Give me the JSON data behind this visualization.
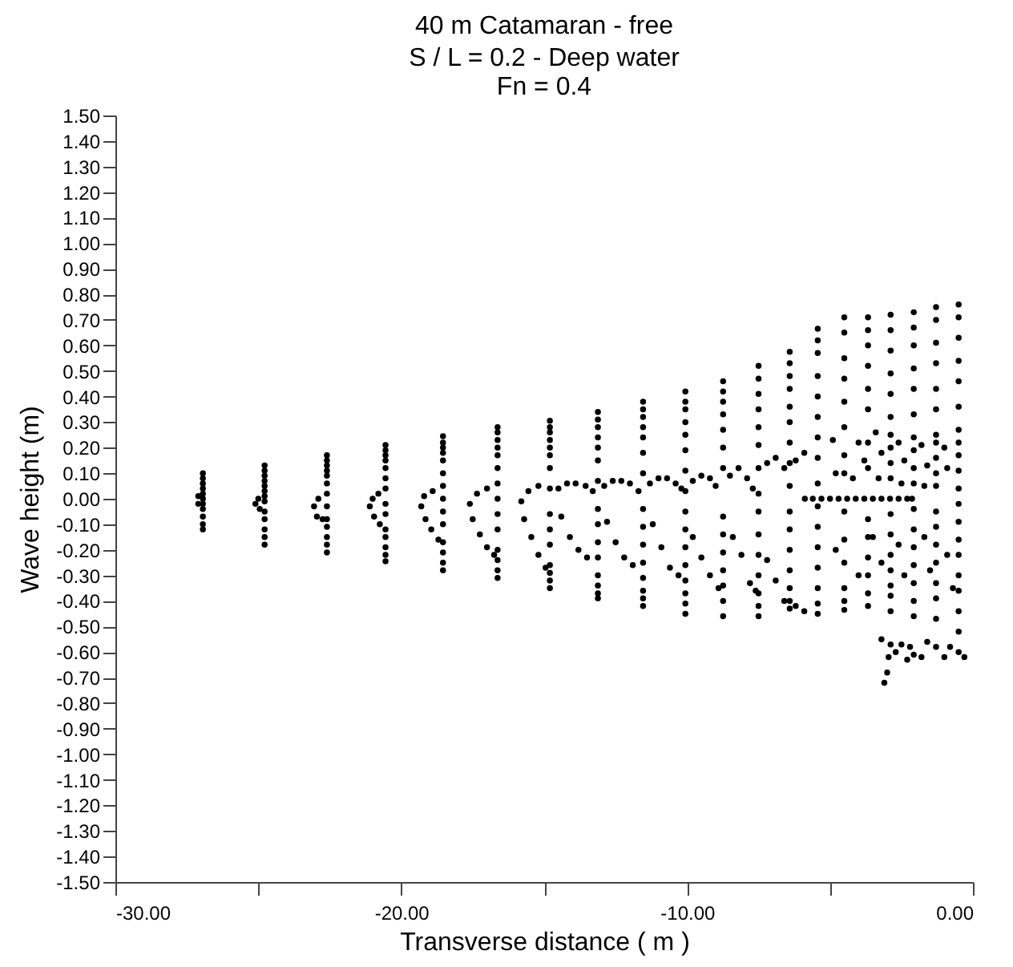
{
  "chart_data": {
    "type": "scatter",
    "title": "40 m Catamaran - free",
    "subtitle": "S / L = 0.2 - Deep water\nFn = 0.4",
    "xlabel": "Transverse distance ( m )",
    "ylabel": "Wave height  (m)",
    "xlim": [
      -30,
      0
    ],
    "ylim": [
      -1.5,
      1.5
    ],
    "xticks": [
      {
        "value": -30,
        "label": "-30.00"
      },
      {
        "value": -25,
        "label": null
      },
      {
        "value": -20,
        "label": "-20.00"
      },
      {
        "value": -15,
        "label": null
      },
      {
        "value": -10,
        "label": "-10.00"
      },
      {
        "value": -5,
        "label": null
      },
      {
        "value": 0,
        "label": "0.00"
      }
    ],
    "yticks": [
      {
        "value": 1.5,
        "label": "1.50"
      },
      {
        "value": 1.4,
        "label": "1.40"
      },
      {
        "value": 1.3,
        "label": "1.30"
      },
      {
        "value": 1.2,
        "label": "1.20"
      },
      {
        "value": 1.1,
        "label": "1.10"
      },
      {
        "value": 1.0,
        "label": "1.00"
      },
      {
        "value": 0.9,
        "label": "0.90"
      },
      {
        "value": 0.8,
        "label": "0.80"
      },
      {
        "value": 0.7,
        "label": "0.70"
      },
      {
        "value": 0.6,
        "label": "0.60"
      },
      {
        "value": 0.5,
        "label": "0.50"
      },
      {
        "value": 0.4,
        "label": "0.40"
      },
      {
        "value": 0.3,
        "label": "0.30"
      },
      {
        "value": 0.2,
        "label": "0.20"
      },
      {
        "value": 0.1,
        "label": "0.10"
      },
      {
        "value": 0,
        "label": "0.00"
      },
      {
        "value": -0.1,
        "label": "-0.10"
      },
      {
        "value": -0.2,
        "label": "-0.20"
      },
      {
        "value": -0.3,
        "label": "-0.30"
      },
      {
        "value": -0.4,
        "label": "-0.40"
      },
      {
        "value": -0.5,
        "label": "-0.50"
      },
      {
        "value": -0.6,
        "label": "-0.60"
      },
      {
        "value": -0.7,
        "label": "-0.70"
      },
      {
        "value": -0.8,
        "label": "-0.80"
      },
      {
        "value": -0.9,
        "label": "-0.90"
      },
      {
        "value": -1.0,
        "label": "-1.00"
      },
      {
        "value": -1.1,
        "label": "-1.10"
      },
      {
        "value": -1.2,
        "label": "-1.20"
      },
      {
        "value": -1.3,
        "label": "-1.30"
      },
      {
        "value": -1.4,
        "label": "-1.40"
      },
      {
        "value": -1.5,
        "label": "-1.50"
      }
    ],
    "grid": false,
    "legend": false,
    "marker": "circle",
    "series": [
      {
        "color": "#000000",
        "x": [
          -26.94,
          -26.94,
          -26.94,
          -26.94,
          -26.94,
          -26.94,
          -26.94,
          -26.94,
          -26.94,
          -26.94,
          -26.94,
          -27.1,
          -27.1
        ],
        "values": [
          0.1,
          0.08,
          0.06,
          0.04,
          0.02,
          0.0,
          -0.02,
          -0.04,
          -0.07,
          -0.1,
          -0.12,
          0.01,
          -0.02
        ]
      },
      {
        "color": "#000000",
        "x": [
          -24.78,
          -24.78,
          -24.78,
          -24.78,
          -24.78,
          -24.78,
          -24.78,
          -24.78,
          -24.78,
          -24.78,
          -24.78,
          -24.78,
          -24.78,
          -25.0,
          -25.1,
          -24.95
        ],
        "values": [
          0.13,
          0.11,
          0.09,
          0.07,
          0.05,
          0.03,
          0.01,
          -0.01,
          -0.05,
          -0.08,
          -0.12,
          -0.15,
          -0.18,
          0.0,
          -0.02,
          -0.04
        ]
      },
      {
        "color": "#000000",
        "x": [
          -22.6,
          -22.6,
          -22.6,
          -22.6,
          -22.6,
          -22.6,
          -22.6,
          -22.6,
          -22.6,
          -22.6,
          -22.6,
          -22.6,
          -22.6,
          -22.9,
          -23.05,
          -22.95,
          -22.75
        ],
        "values": [
          0.17,
          0.15,
          0.13,
          0.11,
          0.09,
          0.06,
          0.02,
          -0.03,
          -0.08,
          -0.11,
          -0.15,
          -0.18,
          -0.21,
          0.0,
          -0.03,
          -0.07,
          -0.08
        ]
      },
      {
        "color": "#000000",
        "x": [
          -20.55,
          -20.55,
          -20.55,
          -20.55,
          -20.55,
          -20.55,
          -20.55,
          -20.55,
          -20.55,
          -20.55,
          -20.55,
          -20.55,
          -20.55,
          -20.55,
          -20.8,
          -21.0,
          -21.1,
          -20.95,
          -20.75
        ],
        "values": [
          0.21,
          0.19,
          0.17,
          0.15,
          0.12,
          0.08,
          0.04,
          -0.02,
          -0.06,
          -0.12,
          -0.15,
          -0.19,
          -0.22,
          -0.245,
          0.02,
          0.0,
          -0.03,
          -0.07,
          -0.1
        ]
      },
      {
        "color": "#000000",
        "x": [
          -18.54,
          -18.54,
          -18.54,
          -18.54,
          -18.54,
          -18.54,
          -18.54,
          -18.54,
          -18.54,
          -18.54,
          -18.54,
          -18.54,
          -18.54,
          -18.54,
          -18.9,
          -19.2,
          -19.3,
          -19.15,
          -18.95,
          -18.7
        ],
        "values": [
          0.245,
          0.22,
          0.2,
          0.18,
          0.15,
          0.1,
          0.05,
          0.0,
          -0.05,
          -0.1,
          -0.17,
          -0.21,
          -0.25,
          -0.28,
          0.03,
          0.01,
          -0.03,
          -0.08,
          -0.12,
          -0.16
        ]
      },
      {
        "color": "#000000",
        "x": [
          -16.63,
          -16.63,
          -16.63,
          -16.63,
          -16.63,
          -16.63,
          -16.63,
          -16.63,
          -16.63,
          -16.63,
          -16.63,
          -16.63,
          -16.63,
          -16.63,
          -17.0,
          -17.35,
          -17.6,
          -17.5,
          -17.25,
          -17.0,
          -16.75
        ],
        "values": [
          0.28,
          0.26,
          0.23,
          0.2,
          0.17,
          0.12,
          0.06,
          0.0,
          -0.06,
          -0.12,
          -0.2,
          -0.24,
          -0.28,
          -0.31,
          0.04,
          0.02,
          -0.02,
          -0.08,
          -0.14,
          -0.19,
          -0.22
        ]
      },
      {
        "color": "#000000",
        "x": [
          -14.8,
          -14.8,
          -14.8,
          -14.8,
          -14.8,
          -14.8,
          -14.8,
          -14.8,
          -14.8,
          -14.8,
          -14.8,
          -14.8,
          -14.8,
          -14.8,
          -14.8,
          -15.2,
          -15.55,
          -15.8,
          -15.7,
          -15.45,
          -15.2,
          -14.95
        ],
        "values": [
          0.305,
          0.28,
          0.26,
          0.23,
          0.2,
          0.17,
          0.12,
          0.04,
          -0.06,
          -0.12,
          -0.18,
          -0.26,
          -0.29,
          -0.32,
          -0.35,
          0.05,
          0.03,
          -0.01,
          -0.08,
          -0.15,
          -0.22,
          -0.27
        ]
      },
      {
        "color": "#000000",
        "x": [
          -13.12,
          -13.12,
          -13.12,
          -13.12,
          -13.12,
          -13.12,
          -13.12,
          -13.12,
          -13.12,
          -13.12,
          -13.12,
          -13.12,
          -13.12,
          -13.12,
          -13.12,
          -14.5,
          -14.2,
          -13.9,
          -13.55,
          -13.3,
          -14.4,
          -14.1,
          -13.8,
          -13.5
        ],
        "values": [
          0.34,
          0.31,
          0.28,
          0.24,
          0.2,
          0.15,
          0.07,
          -0.04,
          -0.1,
          -0.17,
          -0.23,
          -0.3,
          -0.34,
          -0.37,
          -0.39,
          0.04,
          0.06,
          0.06,
          0.05,
          0.03,
          -0.07,
          -0.15,
          -0.2,
          -0.23
        ]
      },
      {
        "color": "#000000",
        "x": [
          -11.54,
          -11.54,
          -11.54,
          -11.54,
          -11.54,
          -11.54,
          -11.54,
          -11.54,
          -11.54,
          -11.54,
          -11.54,
          -11.54,
          -11.54,
          -11.54,
          -11.54,
          -12.9,
          -12.6,
          -12.3,
          -12.0,
          -11.7,
          -12.8,
          -12.5,
          -12.2,
          -11.9
        ],
        "values": [
          0.38,
          0.35,
          0.32,
          0.28,
          0.24,
          0.18,
          0.1,
          -0.04,
          -0.11,
          -0.18,
          -0.25,
          -0.31,
          -0.36,
          -0.39,
          -0.42,
          0.05,
          0.07,
          0.07,
          0.06,
          0.03,
          -0.09,
          -0.17,
          -0.23,
          -0.26
        ]
      },
      {
        "color": "#000000",
        "x": [
          -10.06,
          -10.06,
          -10.06,
          -10.06,
          -10.06,
          -10.06,
          -10.06,
          -10.06,
          -10.06,
          -10.06,
          -10.06,
          -10.06,
          -10.06,
          -10.06,
          -10.06,
          -10.06,
          -11.3,
          -11.0,
          -10.7,
          -10.4,
          -10.2,
          -11.2,
          -10.9,
          -10.6,
          -10.3
        ],
        "values": [
          0.42,
          0.38,
          0.35,
          0.3,
          0.25,
          0.19,
          0.11,
          0.03,
          -0.05,
          -0.12,
          -0.19,
          -0.26,
          -0.32,
          -0.37,
          -0.41,
          -0.45,
          0.06,
          0.08,
          0.08,
          0.06,
          0.04,
          -0.1,
          -0.19,
          -0.27,
          -0.3
        ]
      },
      {
        "color": "#000000",
        "x": [
          -8.74,
          -8.74,
          -8.74,
          -8.74,
          -8.74,
          -8.74,
          -8.74,
          -8.74,
          -8.74,
          -8.74,
          -8.74,
          -8.74,
          -8.74,
          -8.74,
          -9.8,
          -9.5,
          -9.2,
          -9.0,
          -9.8,
          -9.5,
          -9.2,
          -8.9
        ],
        "values": [
          0.46,
          0.42,
          0.38,
          0.33,
          0.27,
          0.2,
          0.12,
          -0.07,
          -0.14,
          -0.21,
          -0.28,
          -0.34,
          -0.4,
          -0.46,
          0.07,
          0.09,
          0.08,
          0.05,
          -0.15,
          -0.23,
          -0.3,
          -0.35
        ]
      },
      {
        "color": "#000000",
        "x": [
          -7.5,
          -7.5,
          -7.5,
          -7.5,
          -7.5,
          -7.5,
          -7.5,
          -7.5,
          -7.5,
          -7.5,
          -7.5,
          -7.5,
          -7.5,
          -7.5,
          -7.5,
          -8.5,
          -8.2,
          -7.9,
          -7.7,
          -8.4,
          -8.1,
          -7.8,
          -7.6
        ],
        "values": [
          0.52,
          0.47,
          0.41,
          0.35,
          0.28,
          0.21,
          0.12,
          0.02,
          -0.05,
          -0.14,
          -0.22,
          -0.3,
          -0.37,
          -0.42,
          -0.46,
          0.09,
          0.12,
          0.08,
          0.04,
          -0.15,
          -0.22,
          -0.33,
          -0.36
        ]
      },
      {
        "color": "#000000",
        "x": [
          -6.41,
          -6.41,
          -6.41,
          -6.41,
          -6.41,
          -6.41,
          -6.41,
          -6.41,
          -6.41,
          -6.41,
          -6.41,
          -6.41,
          -6.41,
          -6.41,
          -6.41,
          -6.41,
          -7.2,
          -6.9,
          -6.6,
          -6.2,
          -5.9,
          -7.2,
          -6.9,
          -6.6,
          -6.2,
          -5.9
        ],
        "values": [
          0.575,
          0.53,
          0.48,
          0.43,
          0.36,
          0.3,
          0.22,
          0.14,
          0.05,
          -0.05,
          -0.12,
          -0.2,
          -0.28,
          -0.35,
          -0.4,
          -0.43,
          0.14,
          0.16,
          0.12,
          0.15,
          0.18,
          -0.24,
          -0.32,
          -0.4,
          -0.42,
          -0.44
        ]
      },
      {
        "color": "#000000",
        "x": [
          -5.43,
          -5.43,
          -5.43,
          -5.43,
          -5.43,
          -5.43,
          -5.43,
          -5.43,
          -5.43,
          -5.43,
          -5.43,
          -5.43,
          -5.43,
          -5.43,
          -5.43,
          -5.43
        ],
        "values": [
          0.665,
          0.62,
          0.57,
          0.48,
          0.4,
          0.32,
          0.24,
          0.16,
          0.06,
          -0.03,
          -0.11,
          -0.19,
          -0.27,
          -0.35,
          -0.41,
          -0.45
        ]
      },
      {
        "color": "#000000",
        "x": [
          -4.5,
          -4.5,
          -4.5,
          -4.5,
          -4.5,
          -4.5,
          -4.5,
          -4.5,
          -4.5,
          -4.5,
          -4.5,
          -4.5,
          -4.5,
          -4.5
        ],
        "values": [
          0.71,
          0.65,
          0.55,
          0.47,
          0.38,
          0.28,
          0.17,
          0.1,
          -0.05,
          -0.16,
          -0.25,
          -0.35,
          -0.4,
          -0.435
        ]
      },
      {
        "color": "#000000",
        "x": [
          -3.67,
          -3.67,
          -3.67,
          -3.67,
          -3.67,
          -3.67,
          -3.67,
          -3.67,
          -3.67,
          -3.67,
          -3.67,
          -3.67,
          -3.67,
          -3.67
        ],
        "values": [
          0.71,
          0.66,
          0.6,
          0.52,
          0.43,
          0.35,
          0.22,
          0.12,
          -0.08,
          -0.15,
          -0.23,
          -0.3,
          -0.37,
          -0.42
        ]
      },
      {
        "color": "#000000",
        "x": [
          -2.88,
          -2.88,
          -2.88,
          -2.88,
          -2.88,
          -2.88,
          -2.88,
          -2.88,
          -2.88,
          -2.88,
          -2.88,
          -2.88,
          -2.88,
          -2.88,
          -2.88,
          -2.88,
          -2.88,
          -2.88
        ],
        "values": [
          0.72,
          0.66,
          0.58,
          0.49,
          0.41,
          0.32,
          0.25,
          0.2,
          0.14,
          0.08,
          -0.06,
          -0.14,
          -0.22,
          -0.28,
          -0.34,
          -0.38,
          -0.44,
          -0.57
        ]
      },
      {
        "color": "#000000",
        "x": [
          -2.07,
          -2.07,
          -2.07,
          -2.07,
          -2.07,
          -2.07,
          -2.07,
          -2.07,
          -2.07,
          -2.07,
          -2.07,
          -2.07,
          -2.07,
          -2.07,
          -2.07,
          -2.07,
          -2.07,
          -2.07
        ],
        "values": [
          0.73,
          0.67,
          0.6,
          0.51,
          0.43,
          0.33,
          0.24,
          0.19,
          0.12,
          0.06,
          -0.04,
          -0.12,
          -0.19,
          -0.26,
          -0.33,
          -0.4,
          -0.46,
          -0.61
        ]
      },
      {
        "color": "#000000",
        "x": [
          -1.29,
          -1.29,
          -1.29,
          -1.29,
          -1.29,
          -1.29,
          -1.29,
          -1.29,
          -1.29,
          -1.29,
          -1.29,
          -1.29,
          -1.29,
          -1.29,
          -1.29,
          -1.29,
          -1.29,
          -1.29,
          -1.29
        ],
        "values": [
          0.75,
          0.7,
          0.61,
          0.53,
          0.43,
          0.35,
          0.25,
          0.22,
          0.16,
          0.1,
          0.05,
          -0.05,
          -0.11,
          -0.18,
          -0.25,
          -0.33,
          -0.39,
          -0.47,
          -0.58
        ]
      },
      {
        "color": "#000000",
        "x": [
          -0.5,
          -0.5,
          -0.5,
          -0.5,
          -0.5,
          -0.5,
          -0.5,
          -0.5,
          -0.5,
          -0.5,
          -0.5,
          -0.5,
          -0.5,
          -0.5,
          -0.5,
          -0.5,
          -0.5,
          -0.5,
          -0.5,
          -0.5
        ],
        "values": [
          0.76,
          0.71,
          0.63,
          0.54,
          0.46,
          0.36,
          0.27,
          0.22,
          0.17,
          0.11,
          0.04,
          -0.02,
          -0.09,
          -0.16,
          -0.22,
          -0.3,
          -0.36,
          -0.44,
          -0.52,
          -0.6
        ]
      },
      {
        "color": "#000000",
        "x": [
          -5.88,
          -5.6,
          -5.3,
          -5.0,
          -4.7,
          -4.4,
          -4.1,
          -3.8,
          -3.5,
          -3.2,
          -2.9,
          -2.6,
          -2.3,
          -2.13
        ],
        "values": [
          0,
          0,
          0,
          0,
          0,
          0,
          0,
          0,
          0,
          0,
          0,
          0,
          0,
          0
        ]
      },
      {
        "color": "#000000",
        "x": [
          -4.9,
          -4.0,
          -3.4,
          -3.2,
          -2.6,
          -2.4,
          -1.8,
          -1.6,
          -1.0,
          -0.9,
          -3.8,
          -4.8,
          -4.2,
          -3.3,
          -2.5,
          -1.7
        ],
        "values": [
          0.23,
          0.22,
          0.26,
          0.18,
          0.22,
          0.15,
          0.21,
          0.13,
          0.2,
          0.12,
          0.15,
          0.1,
          0.08,
          0.08,
          0.06,
          0.05
        ]
      },
      {
        "color": "#000000",
        "x": [
          -3.2,
          -2.95,
          -3.0,
          -3.1,
          -2.7,
          -2.5,
          -2.3,
          -2.2,
          -1.8,
          -1.6,
          -1.0,
          -0.8,
          -0.3
        ],
        "values": [
          -0.55,
          -0.62,
          -0.68,
          -0.72,
          -0.6,
          -0.57,
          -0.63,
          -0.58,
          -0.62,
          -0.56,
          -0.62,
          -0.58,
          -0.62
        ]
      },
      {
        "color": "#000000",
        "x": [
          -3.5,
          -3.2,
          -2.6,
          -2.4,
          -1.7,
          -1.5,
          -0.9,
          -0.7,
          -4.0,
          -4.8
        ],
        "values": [
          -0.15,
          -0.25,
          -0.18,
          -0.3,
          -0.15,
          -0.28,
          -0.22,
          -0.35,
          -0.3,
          -0.2
        ]
      }
    ]
  }
}
